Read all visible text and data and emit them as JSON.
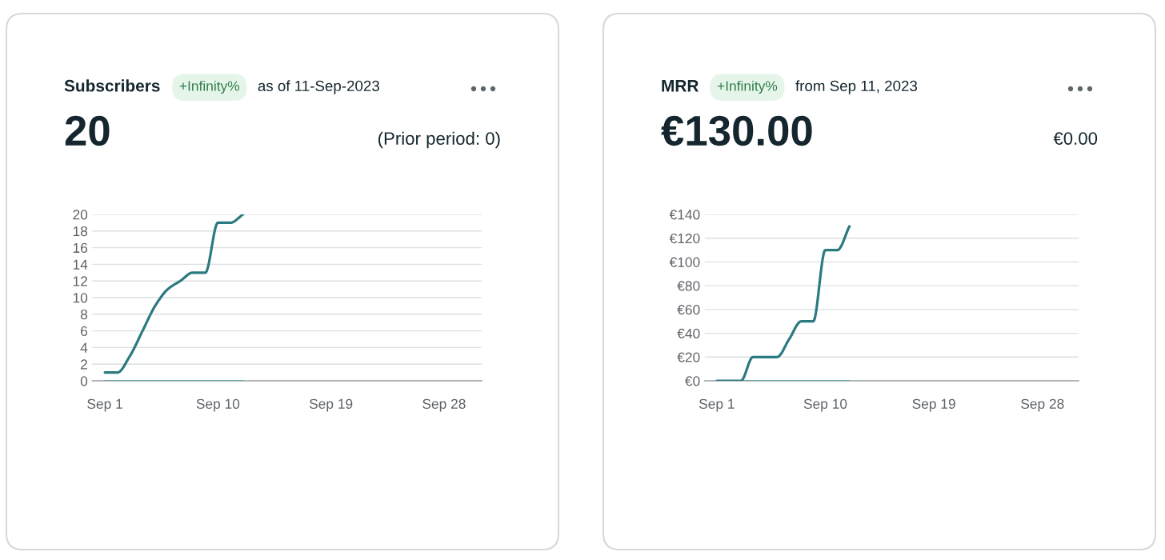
{
  "chart_data": [
    {
      "type": "line",
      "title": "Subscribers",
      "subtitle": "as of 11-Sep-2023",
      "annotations": [
        "+Infinity%",
        "20",
        "(Prior period: 0)"
      ],
      "x": [
        "2023-09-01",
        "2023-09-02",
        "2023-09-03",
        "2023-09-04",
        "2023-09-05",
        "2023-09-06",
        "2023-09-07",
        "2023-09-08",
        "2023-09-09",
        "2023-09-10",
        "2023-09-11",
        "2023-09-12"
      ],
      "series": [
        {
          "color": "#2a7a80",
          "values": [
            1,
            1,
            3,
            6,
            9,
            11,
            12,
            13,
            13,
            19,
            19,
            20
          ]
        },
        {
          "color": "#6fa9ab",
          "values": [
            0,
            0,
            0,
            0,
            0,
            0,
            0,
            0,
            0,
            0,
            0,
            0
          ]
        }
      ],
      "xlim": [
        "2023-08-31",
        "2023-10-01"
      ],
      "xticks": [
        {
          "value": "2023-09-01",
          "label": "Sep 1"
        },
        {
          "value": "2023-09-10",
          "label": "Sep 10"
        },
        {
          "value": "2023-09-19",
          "label": "Sep 19"
        },
        {
          "value": "2023-09-28",
          "label": "Sep 28"
        }
      ],
      "ylim": [
        0,
        20
      ],
      "yticks": [
        0,
        2,
        4,
        6,
        8,
        10,
        12,
        14,
        16,
        18,
        20
      ],
      "grid": "y",
      "line_style": "solid"
    },
    {
      "type": "line",
      "title": "MRR",
      "subtitle": "from Sep 11, 2023",
      "annotations": [
        "+Infinity%",
        "€130.00",
        "€0.00"
      ],
      "x": [
        "2023-09-01",
        "2023-09-02",
        "2023-09-03",
        "2023-09-04",
        "2023-09-05",
        "2023-09-06",
        "2023-09-07",
        "2023-09-08",
        "2023-09-09",
        "2023-09-10",
        "2023-09-11",
        "2023-09-12"
      ],
      "series": [
        {
          "color": "#2a7a80",
          "values": [
            0,
            0,
            0,
            20,
            20,
            20,
            35,
            50,
            50,
            110,
            110,
            130
          ]
        },
        {
          "color": "#6fa9ab",
          "values": [
            0,
            0,
            0,
            0,
            0,
            0,
            0,
            0,
            0,
            0,
            0,
            0
          ]
        }
      ],
      "xlim": [
        "2023-08-31",
        "2023-10-01"
      ],
      "xticks": [
        {
          "value": "2023-09-01",
          "label": "Sep 1"
        },
        {
          "value": "2023-09-10",
          "label": "Sep 10"
        },
        {
          "value": "2023-09-19",
          "label": "Sep 19"
        },
        {
          "value": "2023-09-28",
          "label": "Sep 28"
        }
      ],
      "ylim": [
        0,
        140
      ],
      "yticks": [
        {
          "value": 0,
          "label": "€0"
        },
        {
          "value": 20,
          "label": "€20"
        },
        {
          "value": 40,
          "label": "€40"
        },
        {
          "value": 60,
          "label": "€60"
        },
        {
          "value": 80,
          "label": "€80"
        },
        {
          "value": 100,
          "label": "€100"
        },
        {
          "value": 120,
          "label": "€120"
        },
        {
          "value": 140,
          "label": "€140"
        }
      ],
      "grid": "y",
      "line_style": "solid"
    }
  ]
}
